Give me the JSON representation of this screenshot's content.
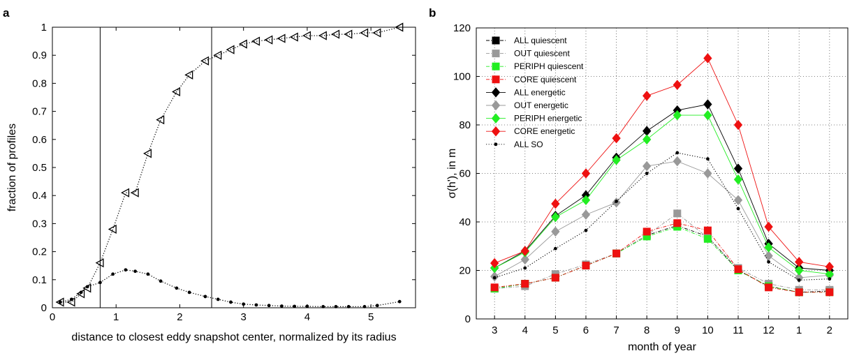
{
  "chart_data": [
    {
      "panel": "a",
      "type": "scatter",
      "xlabel": "distance to closest eddy snapshot center, normalized by its radius",
      "ylabel": "fraction of profiles",
      "xlim": [
        0,
        5.7
      ],
      "ylim": [
        0,
        1
      ],
      "xticks": [
        0,
        1,
        2,
        3,
        4,
        5
      ],
      "yticks": [
        0,
        0.1,
        0.2,
        0.3,
        0.4,
        0.5,
        0.6,
        0.7,
        0.8,
        0.9,
        1
      ],
      "ytick_labels": [
        "0",
        "0.1",
        "0.2",
        "0.3",
        "0.4",
        "0.5",
        "0.6",
        "0.7",
        "0.8",
        "0.9",
        "1"
      ],
      "grid": false,
      "vlines": [
        0.75,
        2.5
      ],
      "series": [
        {
          "marker": "triangle-left",
          "line": "dotted",
          "x": [
            0.125,
            0.3,
            0.45,
            0.55,
            0.75,
            0.95,
            1.15,
            1.3,
            1.5,
            1.7,
            1.95,
            2.15,
            2.4,
            2.6,
            2.8,
            3.0,
            3.2,
            3.4,
            3.6,
            3.8,
            4.0,
            4.25,
            4.45,
            4.65,
            4.9,
            5.1,
            5.45
          ],
          "y": [
            0.02,
            0.02,
            0.05,
            0.07,
            0.16,
            0.28,
            0.41,
            0.41,
            0.55,
            0.67,
            0.77,
            0.83,
            0.88,
            0.9,
            0.92,
            0.94,
            0.95,
            0.955,
            0.96,
            0.965,
            0.97,
            0.97,
            0.975,
            0.975,
            0.98,
            0.98,
            1.0
          ]
        },
        {
          "marker": "dot",
          "line": "dotted",
          "x": [
            0.125,
            0.3,
            0.45,
            0.55,
            0.75,
            0.95,
            1.15,
            1.3,
            1.5,
            1.7,
            1.95,
            2.15,
            2.4,
            2.6,
            2.8,
            3.0,
            3.2,
            3.4,
            3.6,
            3.8,
            4.0,
            4.25,
            4.45,
            4.65,
            4.9,
            5.1,
            5.45
          ],
          "y": [
            0.02,
            0.03,
            0.055,
            0.075,
            0.09,
            0.12,
            0.135,
            0.13,
            0.12,
            0.095,
            0.07,
            0.055,
            0.04,
            0.03,
            0.02,
            0.013,
            0.01,
            0.008,
            0.006,
            0.005,
            0.005,
            0.004,
            0.004,
            0.004,
            0.004,
            0.008,
            0.022
          ]
        }
      ]
    },
    {
      "panel": "b",
      "type": "line",
      "xlabel": "month of year",
      "ylabel": "σ(h'), in m",
      "categories": [
        "3",
        "4",
        "5",
        "6",
        "7",
        "8",
        "9",
        "10",
        "11",
        "12",
        "1",
        "2"
      ],
      "ylim": [
        0,
        120
      ],
      "yticks": [
        0,
        20,
        40,
        60,
        80,
        100,
        120
      ],
      "grid": true,
      "legend": "top-left",
      "series": [
        {
          "name": "ALL quiescent",
          "color": "#000000",
          "marker": "square",
          "line": "dashdot",
          "values": [
            12.5,
            14.5,
            17,
            22,
            27,
            34.5,
            38.5,
            34,
            20,
            13.5,
            11,
            11.5
          ]
        },
        {
          "name": "OUT quiescent",
          "color": "#999999",
          "marker": "square",
          "line": "dashdot",
          "values": [
            12.5,
            13.5,
            18.5,
            22.5,
            27,
            34.5,
            43.5,
            33.5,
            21,
            14.5,
            12,
            12
          ]
        },
        {
          "name": "PERIPH quiescent",
          "color": "#22ee22",
          "marker": "square",
          "line": "dashdot",
          "values": [
            12.5,
            14.5,
            17,
            22,
            27,
            34,
            38,
            33,
            20,
            13.5,
            11,
            11
          ]
        },
        {
          "name": "CORE quiescent",
          "color": "#ee1111",
          "marker": "square",
          "line": "dashdot",
          "values": [
            13,
            14.5,
            17,
            22,
            27,
            36,
            39.5,
            36.5,
            20.5,
            13,
            11,
            11
          ]
        },
        {
          "name": "ALL energetic",
          "color": "#000000",
          "marker": "diamond",
          "line": "solid",
          "values": [
            21,
            28,
            42.5,
            51,
            66.5,
            77.5,
            86,
            88.5,
            62,
            31,
            21,
            20
          ]
        },
        {
          "name": "OUT energetic",
          "color": "#999999",
          "marker": "diamond",
          "line": "solid",
          "values": [
            17.5,
            24.5,
            36,
            43,
            48,
            63,
            65,
            60,
            49,
            26,
            17,
            18
          ]
        },
        {
          "name": "PERIPH energetic",
          "color": "#22ee22",
          "marker": "diamond",
          "line": "solid",
          "values": [
            21,
            27.5,
            42,
            49,
            65.5,
            74,
            84,
            84,
            57.5,
            29.5,
            20,
            18.5
          ]
        },
        {
          "name": "CORE energetic",
          "color": "#ee1111",
          "marker": "diamond",
          "line": "solid",
          "values": [
            23,
            28,
            47.5,
            60,
            74.5,
            92,
            96.5,
            107.5,
            80,
            38,
            23.5,
            21.5
          ]
        },
        {
          "name": "ALL SO",
          "color": "#000000",
          "marker": "dot",
          "line": "dotted",
          "values": [
            17,
            21,
            29,
            36.5,
            48.5,
            60,
            68.5,
            66,
            45.5,
            23.5,
            16,
            16.5
          ]
        }
      ]
    }
  ]
}
